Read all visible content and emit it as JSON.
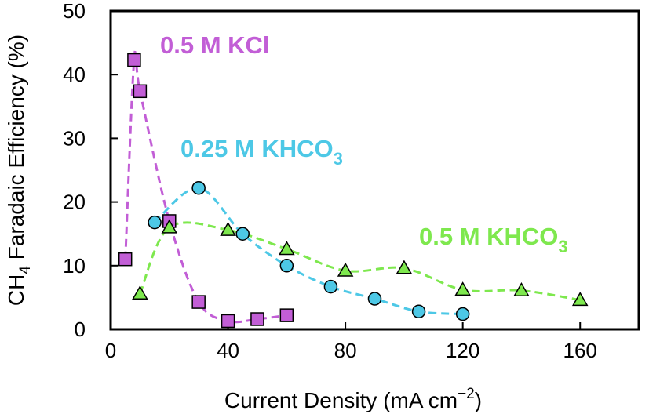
{
  "chart_data": {
    "type": "scatter",
    "xlabel": "Current Density (mA cm",
    "xlabel_sup": "−2",
    "xlabel_end": ")",
    "ylabel_prefix": "CH",
    "ylabel_sub": "4",
    "ylabel_rest": " Faradaic Efficiency (%)",
    "xlim": [
      0,
      180
    ],
    "ylim": [
      0,
      50
    ],
    "xticks": [
      0,
      40,
      80,
      120,
      160
    ],
    "yticks": [
      0,
      10,
      20,
      30,
      40,
      50
    ],
    "grid": false,
    "series": [
      {
        "name": "0.5 M KCl",
        "label_main": "0.5 M KCl",
        "label_sub": "",
        "marker": "square",
        "color": "#c25ed6",
        "fill": "#c25ed6",
        "x": [
          5,
          8,
          10,
          20,
          30,
          40,
          50,
          60
        ],
        "y": [
          11.0,
          42.3,
          37.4,
          17.0,
          4.3,
          1.3,
          1.6,
          2.2
        ]
      },
      {
        "name": "0.25 M KHCO3",
        "label_main": "0.25 M KHCO",
        "label_sub": "3",
        "marker": "circle",
        "color": "#4dc8e6",
        "fill": "#4dc8e6",
        "x": [
          15,
          30,
          45,
          60,
          75,
          90,
          105,
          120
        ],
        "y": [
          16.8,
          22.2,
          15.0,
          10.0,
          6.7,
          4.8,
          2.8,
          2.4
        ]
      },
      {
        "name": "0.5 M KHCO3",
        "label_main": "0.5 M KHCO",
        "label_sub": "3",
        "marker": "triangle",
        "color": "#7ee84e",
        "fill": "#7ee84e",
        "x": [
          10,
          20,
          40,
          60,
          80,
          100,
          120,
          140,
          160
        ],
        "y": [
          5.6,
          16.0,
          15.6,
          12.6,
          9.2,
          9.6,
          6.2,
          6.1,
          4.6
        ]
      }
    ]
  }
}
